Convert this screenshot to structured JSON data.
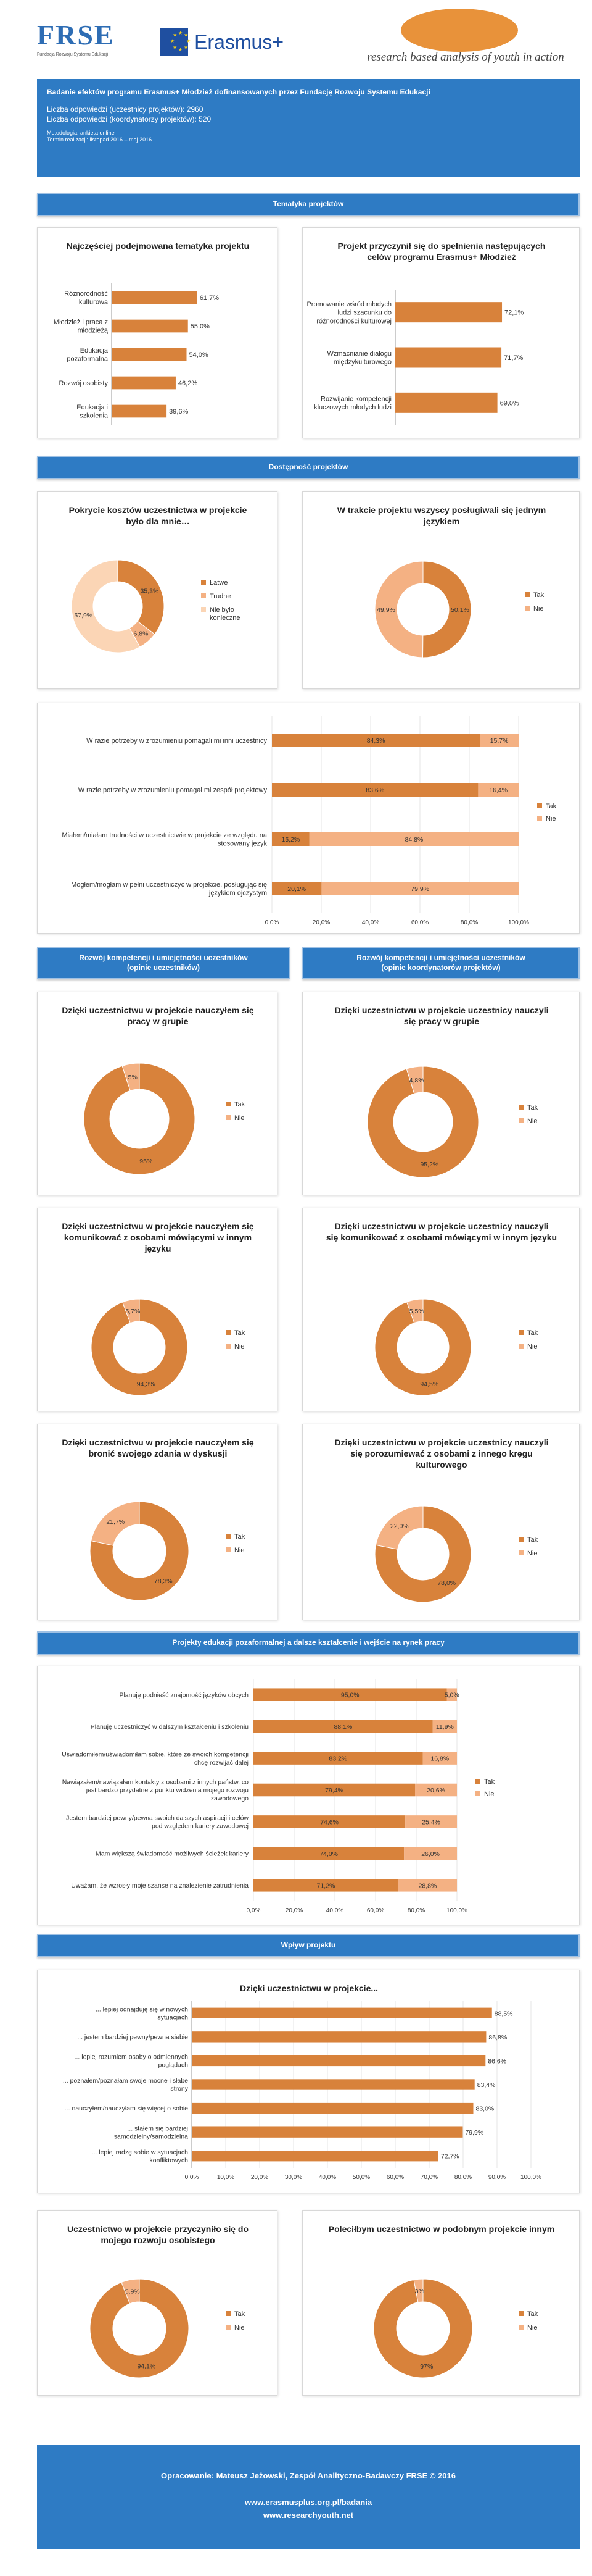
{
  "logos": {
    "frse_letters": "FRSE",
    "frse_sub": "Fundacja Rozwoju Systemu Edukacji",
    "erasmus": "Erasmus+",
    "ray": "research based analysis of youth in action"
  },
  "header": {
    "title": "Badanie efektów programu Erasmus+ Młodzież dofinansowanych przez Fundację Rozwoju Systemu Edukacji",
    "participants": "Liczba odpowiedzi (uczestnicy projektów): 2960",
    "coordinators": "Liczba odpowiedzi (koordynatorzy projektów): 520",
    "method": "Metodologia:  ankieta online",
    "period": "Termin realizacji: listopad  2016 – maj 2016"
  },
  "sections": {
    "topics": "Tematyka projektów",
    "access": "Dostępność projektów",
    "skills_participants": "Rozwój kompetencji i umiejętności uczestników\n(opinie uczestników)",
    "skills_coordinators": "Rozwój kompetencji i umiejętności uczestników\n(opinie koordynatorów projektów)",
    "education": "Projekty edukacji pozaformalnej a dalsze kształcenie i wejście na rynek pracy",
    "impact": "Wpływ projektu"
  },
  "footer": {
    "author": "Opracowanie: Mateusz Jeżowski, Zespół Analityczno-Badawczy FRSE © 2016",
    "url1": "www.erasmusplus.org.pl/badania",
    "url2": "www.researchyouth.net"
  },
  "colors": {
    "dark_orange": "#d8823b",
    "light_orange": "#f4b183",
    "light_peach": "#fbd5b5",
    "blue": "#2e7bc4"
  },
  "chart_data": [
    {
      "id": "topics",
      "type": "bar",
      "orientation": "horizontal",
      "title": "Najczęściej podejmowana tematyka projektu",
      "categories": [
        "Różnorodność kulturowa",
        "Młodzież i praca z młodzieżą",
        "Edukacja pozaformalna",
        "Rozwój osobisty",
        "Edukacja i szkolenia"
      ],
      "values": [
        61.7,
        55.0,
        54.0,
        46.2,
        39.6
      ],
      "labels": [
        "61,7%",
        "55,0%",
        "54,0%",
        "46,2%",
        "39,6%"
      ],
      "xlim": [
        0,
        100
      ]
    },
    {
      "id": "reasons",
      "type": "bar",
      "orientation": "horizontal",
      "title": "Projekt przyczynił się do spełnienia następujących celów programu Erasmus+ Młodzież",
      "categories": [
        "Promowanie wśród młodych ludzi szacunku do różnorodności kulturowej",
        "Wzmacnianie dialogu międzykulturowego",
        "Rozwijanie kompetencji kluczowych młodych ludzi"
      ],
      "values": [
        72.1,
        71.7,
        69.0
      ],
      "labels": [
        "72,1%",
        "71,7%",
        "69,0%"
      ],
      "xlim": [
        0,
        100
      ]
    },
    {
      "id": "costs",
      "type": "pie",
      "donut": true,
      "title": "Pokrycie kosztów uczestnictwa w projekcie  było dla mnie…",
      "categories": [
        "Łatwe",
        "Trudne",
        "Nie było konieczne"
      ],
      "values": [
        35.3,
        6.8,
        57.9
      ],
      "labels": [
        "35,3%",
        "6,8%",
        "57,9%"
      ],
      "legend": "right"
    },
    {
      "id": "language",
      "type": "pie",
      "donut": true,
      "title": "W trakcie projektu wszyscy posługiwali się jednym językiem",
      "categories": [
        "Tak",
        "Nie"
      ],
      "values": [
        50.1,
        49.9
      ],
      "labels": [
        "50,1%",
        "49,9%"
      ],
      "legend": "right"
    },
    {
      "id": "language_help",
      "type": "bar",
      "stacked": true,
      "orientation": "horizontal",
      "categories": [
        "W razie potrzeby w zrozumieniu pomagali mi inni uczestnicy",
        "W razie potrzeby w zrozumieniu pomagał mi zespół projektowy",
        "Miałem/miałam trudności w uczestnictwie w projekcie ze względu na stosowany język",
        "Mogłem/mogłam w pełni uczestniczyć w projekcie, posługując się językiem ojczystym"
      ],
      "series": [
        {
          "name": "Tak",
          "values": [
            84.3,
            83.6,
            15.2,
            20.1
          ],
          "labels": [
            "84,3%",
            "83,6%",
            "15,2%",
            "20,1%"
          ]
        },
        {
          "name": "Nie",
          "values": [
            15.7,
            16.4,
            84.8,
            79.9
          ],
          "labels": [
            "15,7%",
            "16,4%",
            "84,8%",
            "79,9%"
          ]
        }
      ],
      "ticks": [
        "0,0%",
        "20,0%",
        "40,0%",
        "60,0%",
        "80,0%",
        "100,0%"
      ],
      "xlim": [
        0,
        100
      ],
      "legend": "right"
    },
    {
      "id": "p_group",
      "type": "pie",
      "donut": true,
      "title": "Dzięki uczestnictwu w projekcie nauczyłem się pracy w grupie",
      "categories": [
        "Tak",
        "Nie"
      ],
      "values": [
        95,
        5
      ],
      "labels": [
        "95%",
        "5%"
      ],
      "legend": "right"
    },
    {
      "id": "c_group",
      "type": "pie",
      "donut": true,
      "title": "Dzięki uczestnictwu w projekcie uczestnicy nauczyli się pracy w grupie",
      "categories": [
        "Tak",
        "Nie"
      ],
      "values": [
        95.2,
        4.8
      ],
      "labels": [
        "95,2%",
        "4,8%"
      ],
      "legend": "right"
    },
    {
      "id": "p_comm",
      "type": "pie",
      "donut": true,
      "title": "Dzięki uczestnictwu w projekcie nauczyłem się komunikować  z osobami mówiącymi w innym języku",
      "categories": [
        "Tak",
        "Nie"
      ],
      "values": [
        94.3,
        5.7
      ],
      "labels": [
        "94,3%",
        "5,7%"
      ],
      "legend": "right"
    },
    {
      "id": "c_comm",
      "type": "pie",
      "donut": true,
      "title": "Dzięki uczestnictwu w projekcie uczestnicy nauczyli się komunikować  z osobami mówiącymi w innym języku",
      "categories": [
        "Tak",
        "Nie"
      ],
      "values": [
        94.5,
        5.5
      ],
      "labels": [
        "94,5%",
        "5,5%"
      ],
      "legend": "right"
    },
    {
      "id": "p_defend",
      "type": "pie",
      "donut": true,
      "title": "Dzięki uczestnictwu w projekcie nauczyłem się bronić swojego zdania w dyskusji",
      "categories": [
        "Tak",
        "Nie"
      ],
      "values": [
        78.3,
        21.7
      ],
      "labels": [
        "78,3%",
        "21,7%"
      ],
      "legend": "right"
    },
    {
      "id": "c_culture",
      "type": "pie",
      "donut": true,
      "title": "Dzięki uczestnictwu w projekcie uczestnicy nauczyli się porozumiewać z osobami z innego kręgu kulturowego",
      "categories": [
        "Tak",
        "Nie"
      ],
      "values": [
        78.0,
        22.0
      ],
      "labels": [
        "78,0%",
        "22,0%"
      ],
      "legend": "right"
    },
    {
      "id": "education",
      "type": "bar",
      "stacked": true,
      "orientation": "horizontal",
      "categories": [
        "Planuję podnieść znajomość języków obcych",
        "Planuję uczestniczyć w dalszym kształceniu i szkoleniu",
        "Uświadomiłem/uświadomiłam sobie, które ze swoich kompetencji chcę rozwijać dalej",
        "Nawiązałem/nawiązałam kontakty z osobami z innych państw, co jest bardzo przydatne z punktu widzenia mojego rozwoju zawodowego",
        "Jestem bardziej pewny/pewna swoich dalszych aspiracji i celów pod względem kariery zawodowej",
        "Mam większą świadomość możliwych ścieżek kariery",
        "Uważam, że wzrosły moje szanse na znalezienie zatrudnienia"
      ],
      "series": [
        {
          "name": "Tak",
          "values": [
            95.0,
            88.1,
            83.2,
            79.4,
            74.6,
            74.0,
            71.2
          ],
          "labels": [
            "95,0%",
            "88,1%",
            "83,2%",
            "79,4%",
            "74,6%",
            "74,0%",
            "71,2%"
          ]
        },
        {
          "name": "Nie",
          "values": [
            5.0,
            11.9,
            16.8,
            20.6,
            25.4,
            26.0,
            28.8
          ],
          "labels": [
            "5,0%",
            "11,9%",
            "16,8%",
            "20,6%",
            "25,4%",
            "26,0%",
            "28,8%"
          ]
        }
      ],
      "ticks": [
        "0,0%",
        "20,0%",
        "40,0%",
        "60,0%",
        "80,0%",
        "100,0%"
      ],
      "xlim": [
        0,
        100
      ],
      "legend": "right"
    },
    {
      "id": "impact",
      "type": "bar",
      "orientation": "horizontal",
      "title": "Dzięki uczestnictwu w projekcie...",
      "categories": [
        "... lepiej odnajduję się w nowych sytuacjach",
        "... jestem bardziej pewny/pewna  siebie",
        "... lepiej rozumiem osoby o odmiennych poglądach",
        "... poznałem/poznałam  swoje mocne  i słabe strony",
        "... nauczyłem/nauczyłam  się więcej o sobie",
        "... stałem się bardziej samodzielny/samodzielna",
        "... lepiej radzę sobie w sytuacjach konfliktowych"
      ],
      "values": [
        88.5,
        86.8,
        86.6,
        83.4,
        83.0,
        79.9,
        72.7
      ],
      "labels": [
        "88,5%",
        "86,8%",
        "86,6%",
        "83,4%",
        "83,0%",
        "79,9%",
        "72,7%"
      ],
      "ticks": [
        "0,0%",
        "10,0%",
        "20,0%",
        "30,0%",
        "40,0%",
        "50,0%",
        "60,0%",
        "70,0%",
        "80,0%",
        "90,0%",
        "100,0%"
      ],
      "xlim": [
        0,
        100
      ]
    },
    {
      "id": "p_dev",
      "type": "pie",
      "donut": true,
      "title": "Uczestnictwo w projekcie przyczyniło się do mojego rozwoju osobistego",
      "categories": [
        "Tak",
        "Nie"
      ],
      "values": [
        94.1,
        5.9
      ],
      "labels": [
        "94,1%",
        "5,9%"
      ],
      "legend": "right"
    },
    {
      "id": "p_recommend",
      "type": "pie",
      "donut": true,
      "title": "Poleciłbym uczestnictwo w podobnym projekcie innym",
      "categories": [
        "Tak",
        "Nie"
      ],
      "values": [
        97,
        3
      ],
      "labels": [
        "97%",
        "3%"
      ],
      "legend": "right"
    }
  ]
}
